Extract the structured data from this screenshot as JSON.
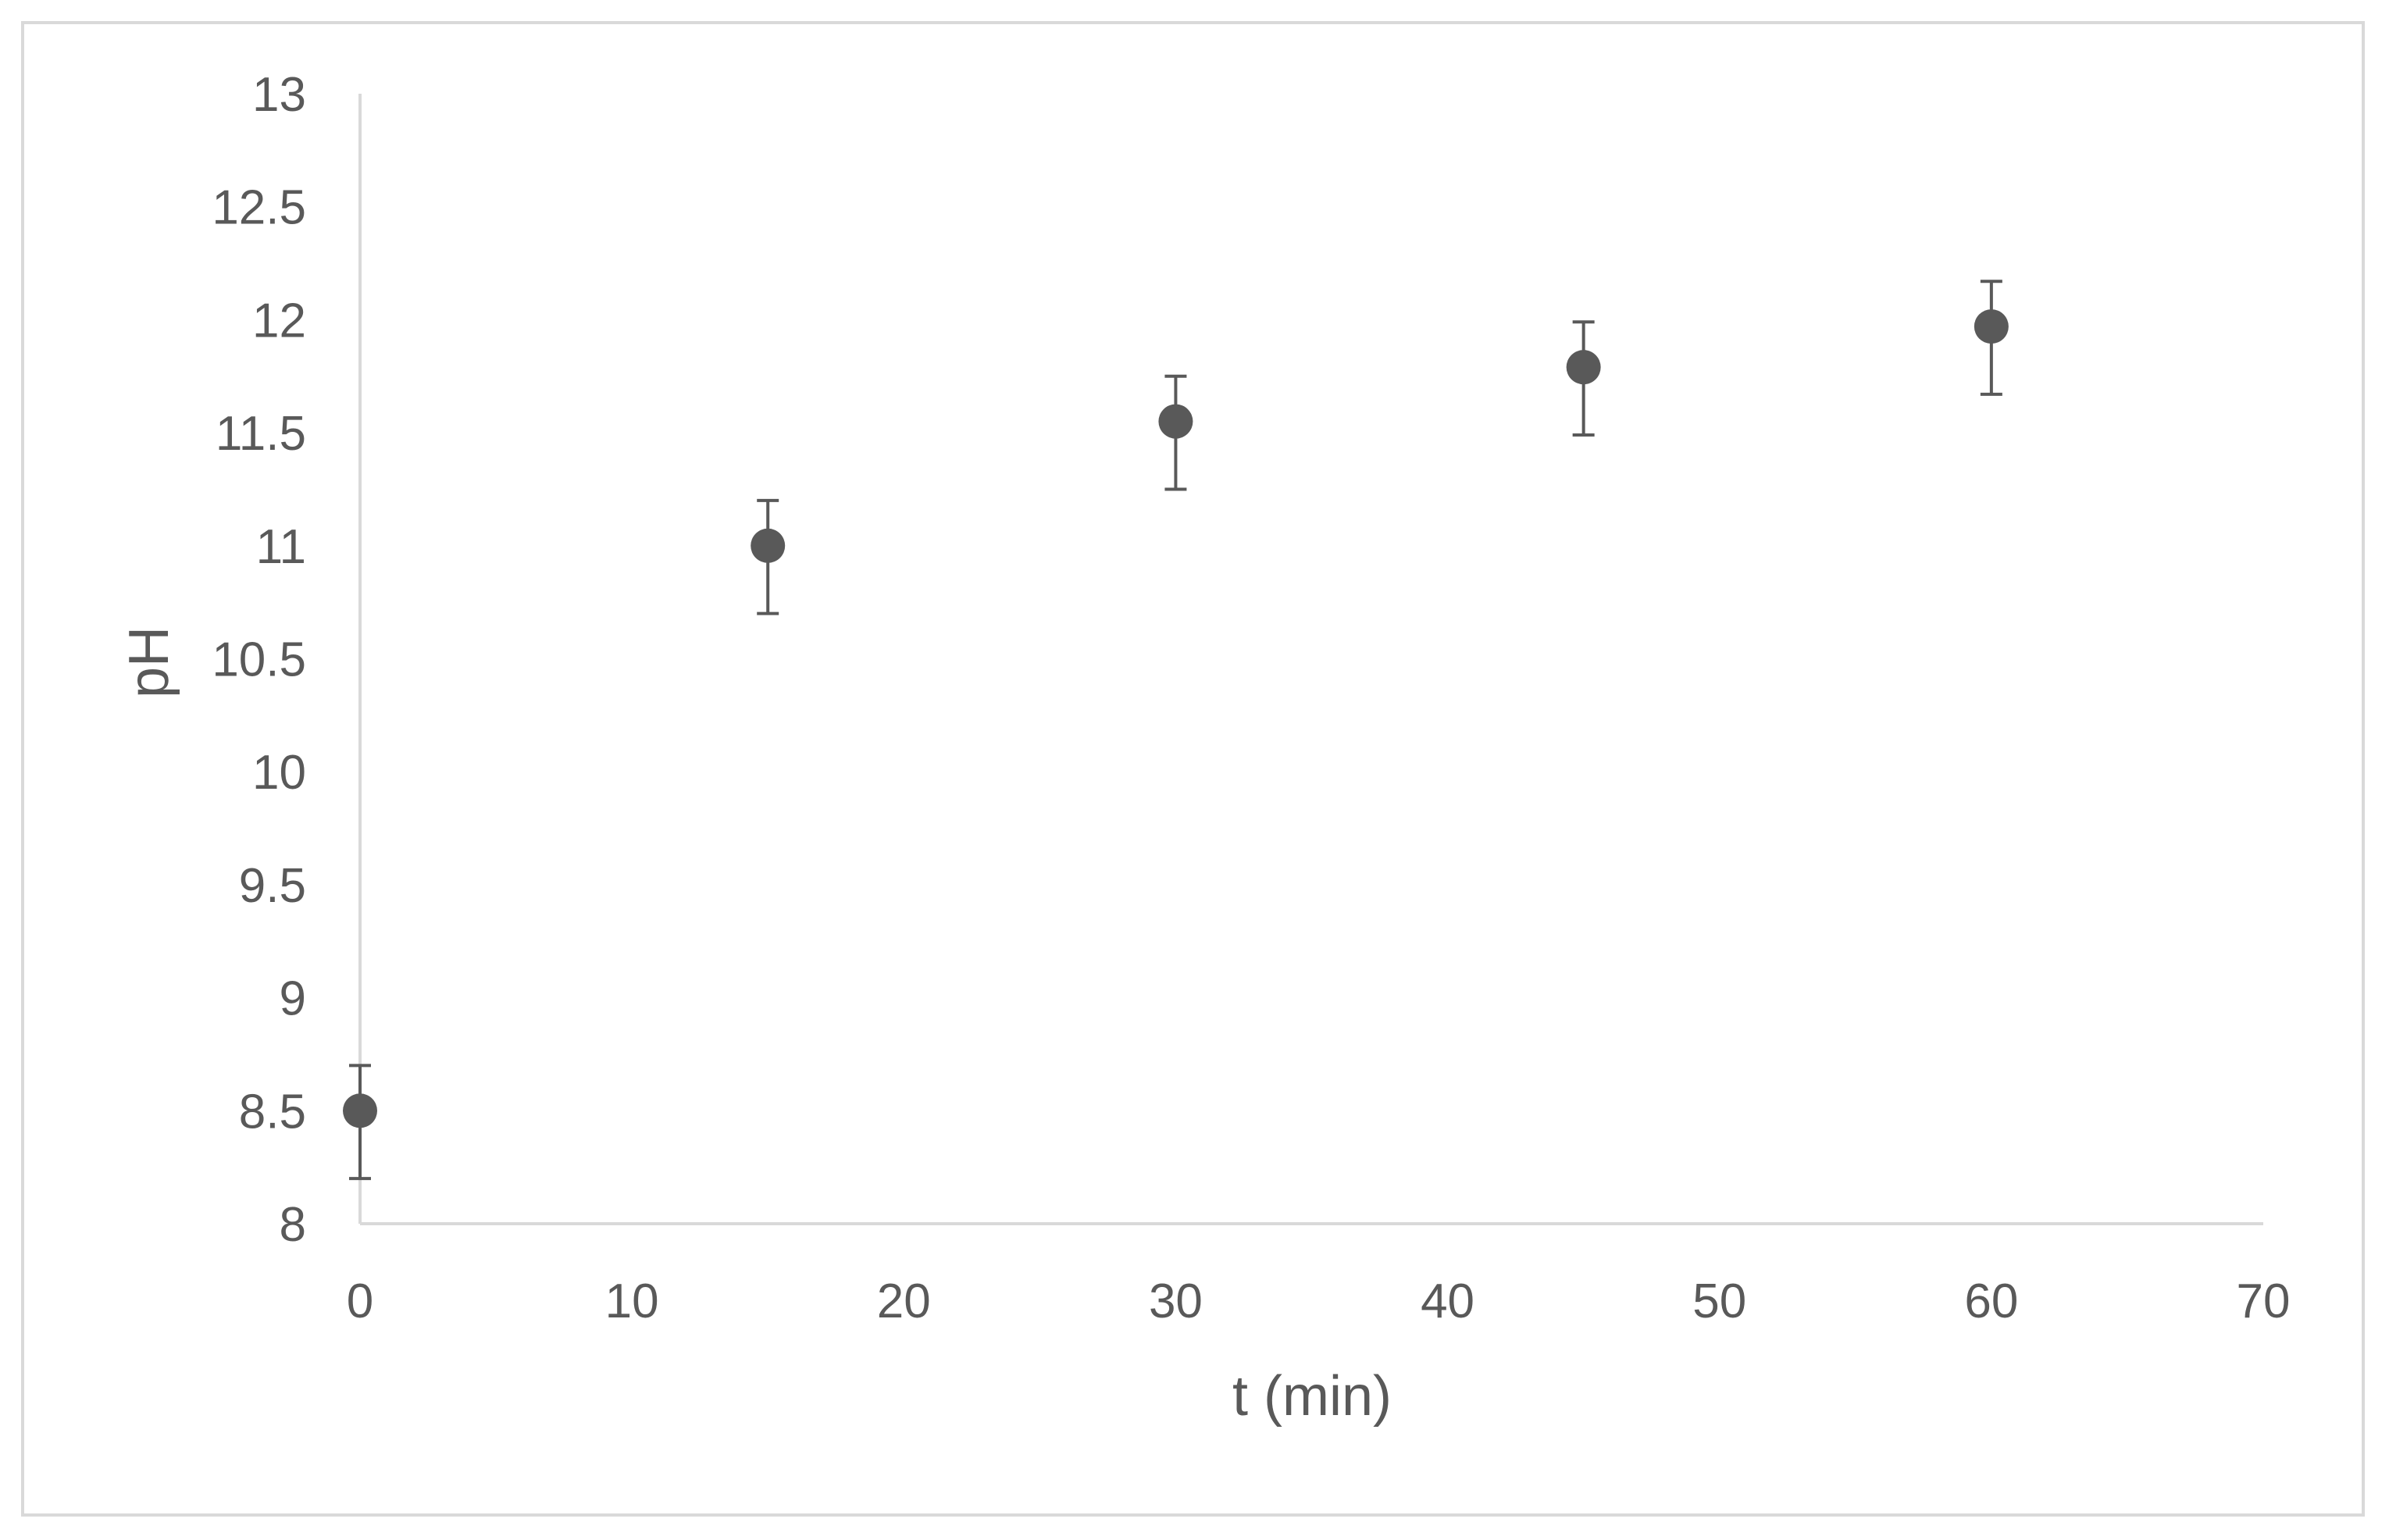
{
  "chart_data": {
    "type": "scatter",
    "title": "",
    "xlabel": "t (min)",
    "ylabel": "pH",
    "xlim": [
      0,
      70
    ],
    "ylim": [
      8,
      13
    ],
    "x_ticks": [
      0,
      10,
      20,
      30,
      40,
      50,
      60,
      70
    ],
    "y_ticks": [
      8,
      8.5,
      9,
      9.5,
      10,
      10.5,
      11,
      11.5,
      12,
      12.5,
      13
    ],
    "grid": false,
    "legend": "none",
    "marker_color": "#595959",
    "axis_color": "#d9d9d9",
    "series": [
      {
        "x": [
          0,
          15,
          30,
          45,
          60
        ],
        "y": [
          8.5,
          11.0,
          11.55,
          11.79,
          11.97
        ],
        "error_plus": [
          0.2,
          0.2,
          0.2,
          0.2,
          0.2
        ],
        "error_minus": [
          0.3,
          0.3,
          0.3,
          0.3,
          0.3
        ]
      }
    ]
  }
}
